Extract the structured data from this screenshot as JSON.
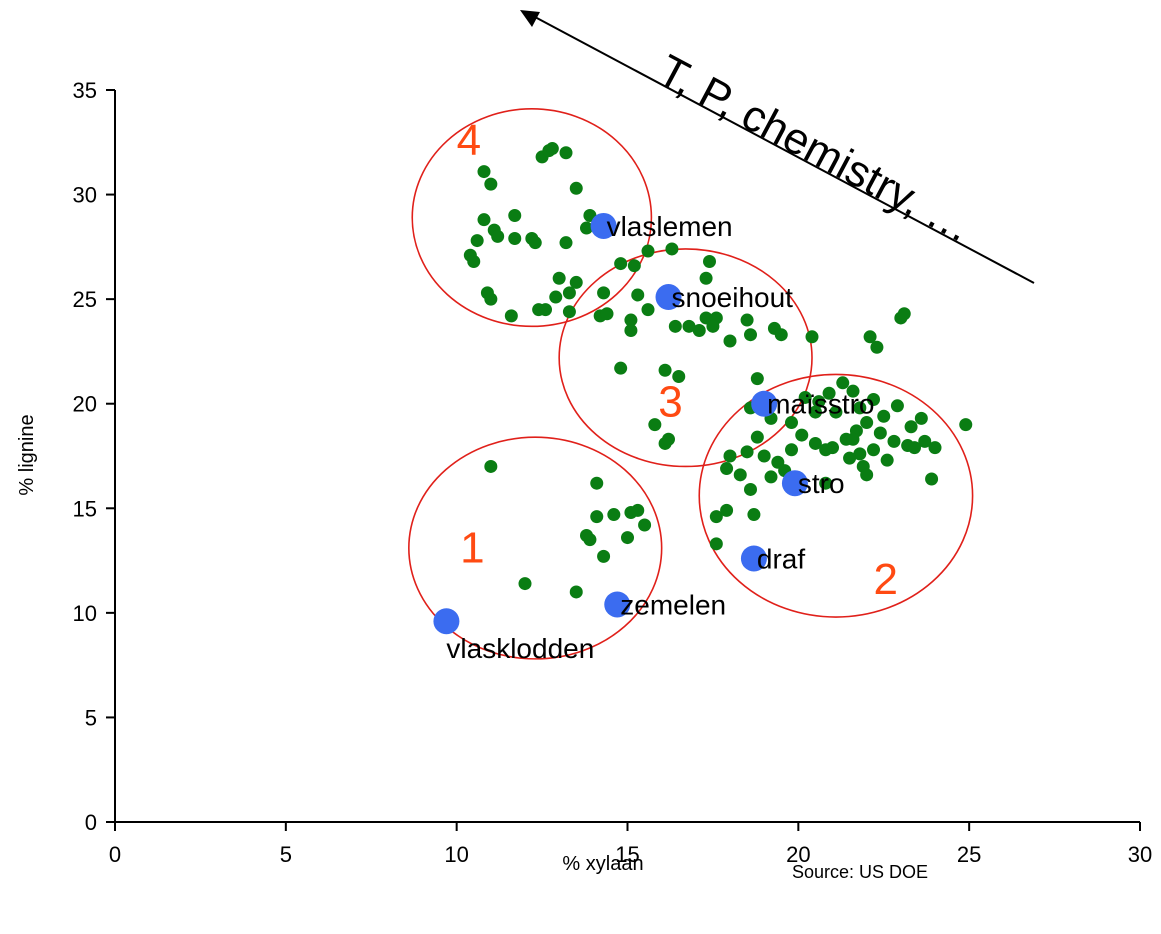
{
  "chart_data": {
    "type": "scatter",
    "xlabel": "% xylaan",
    "ylabel": "% lignine",
    "xlim": [
      0,
      30
    ],
    "ylim": [
      0,
      35
    ],
    "x_ticks": [
      0,
      5,
      10,
      15,
      20,
      25,
      30
    ],
    "y_ticks": [
      0,
      5,
      10,
      15,
      20,
      25,
      30,
      35
    ],
    "grid": false,
    "colors": {
      "background_points": "#0a7d13",
      "labeled_points": "#3b6cf0",
      "clusters": "#e0201a",
      "cluster_labels": "#ff4a12",
      "axes": "#000000"
    },
    "series": [
      {
        "points": [
          [
            11.0,
            17.0
          ],
          [
            12.0,
            11.4
          ],
          [
            13.5,
            11.0
          ],
          [
            14.1,
            16.2
          ],
          [
            13.8,
            13.7
          ],
          [
            13.9,
            13.5
          ],
          [
            14.1,
            14.6
          ],
          [
            14.6,
            14.7
          ],
          [
            15.1,
            14.8
          ],
          [
            15.3,
            14.9
          ],
          [
            15.0,
            13.6
          ],
          [
            15.5,
            14.2
          ],
          [
            14.3,
            12.7
          ],
          [
            10.8,
            31.1
          ],
          [
            11.0,
            30.5
          ],
          [
            12.5,
            31.8
          ],
          [
            12.7,
            32.1
          ],
          [
            12.8,
            32.2
          ],
          [
            13.2,
            32.0
          ],
          [
            10.8,
            28.8
          ],
          [
            11.7,
            29.0
          ],
          [
            13.5,
            30.3
          ],
          [
            13.9,
            29.0
          ],
          [
            14.2,
            28.7
          ],
          [
            10.6,
            27.8
          ],
          [
            11.1,
            28.3
          ],
          [
            11.2,
            28.0
          ],
          [
            11.7,
            27.9
          ],
          [
            12.2,
            27.9
          ],
          [
            12.3,
            27.7
          ],
          [
            10.4,
            27.1
          ],
          [
            10.5,
            26.8
          ],
          [
            13.2,
            27.7
          ],
          [
            13.8,
            28.4
          ],
          [
            10.9,
            25.3
          ],
          [
            11.0,
            25.0
          ],
          [
            11.6,
            24.2
          ],
          [
            12.4,
            24.5
          ],
          [
            12.6,
            24.5
          ],
          [
            12.9,
            25.1
          ],
          [
            13.0,
            26.0
          ],
          [
            13.3,
            25.3
          ],
          [
            13.5,
            25.8
          ],
          [
            13.3,
            24.4
          ],
          [
            14.2,
            24.2
          ],
          [
            14.3,
            25.3
          ],
          [
            14.4,
            24.3
          ],
          [
            14.8,
            26.7
          ],
          [
            15.2,
            26.6
          ],
          [
            15.6,
            27.3
          ],
          [
            16.3,
            27.4
          ],
          [
            17.4,
            26.8
          ],
          [
            17.3,
            26.0
          ],
          [
            15.3,
            25.2
          ],
          [
            15.1,
            24.0
          ],
          [
            15.1,
            23.5
          ],
          [
            15.6,
            24.5
          ],
          [
            16.4,
            23.7
          ],
          [
            16.8,
            23.7
          ],
          [
            17.1,
            23.5
          ],
          [
            17.3,
            24.1
          ],
          [
            17.6,
            24.1
          ],
          [
            17.5,
            23.7
          ],
          [
            18.0,
            23.0
          ],
          [
            18.5,
            24.0
          ],
          [
            18.6,
            23.3
          ],
          [
            19.3,
            23.6
          ],
          [
            19.5,
            23.3
          ],
          [
            20.4,
            23.2
          ],
          [
            16.1,
            21.6
          ],
          [
            16.5,
            21.3
          ],
          [
            14.8,
            21.7
          ],
          [
            15.8,
            19.0
          ],
          [
            16.1,
            18.1
          ],
          [
            16.2,
            18.3
          ],
          [
            23.0,
            24.1
          ],
          [
            23.1,
            24.3
          ],
          [
            22.1,
            23.2
          ],
          [
            22.3,
            22.7
          ],
          [
            18.8,
            21.2
          ],
          [
            18.6,
            19.8
          ],
          [
            19.2,
            19.3
          ],
          [
            19.8,
            19.1
          ],
          [
            20.2,
            20.3
          ],
          [
            20.6,
            20.1
          ],
          [
            20.9,
            20.5
          ],
          [
            21.3,
            21.0
          ],
          [
            21.6,
            20.6
          ],
          [
            21.1,
            19.6
          ],
          [
            21.8,
            19.8
          ],
          [
            22.2,
            20.2
          ],
          [
            20.5,
            19.6
          ],
          [
            20.1,
            18.5
          ],
          [
            20.5,
            18.1
          ],
          [
            21.0,
            17.9
          ],
          [
            21.4,
            18.3
          ],
          [
            21.7,
            18.7
          ],
          [
            22.0,
            19.1
          ],
          [
            22.5,
            19.4
          ],
          [
            22.9,
            19.9
          ],
          [
            23.3,
            18.9
          ],
          [
            23.6,
            19.3
          ],
          [
            23.2,
            18.0
          ],
          [
            23.7,
            18.2
          ],
          [
            24.0,
            17.9
          ],
          [
            24.9,
            19.0
          ],
          [
            23.9,
            16.4
          ],
          [
            21.8,
            17.6
          ],
          [
            21.9,
            17.0
          ],
          [
            22.0,
            16.6
          ],
          [
            22.2,
            17.8
          ],
          [
            22.6,
            17.3
          ],
          [
            22.8,
            18.2
          ],
          [
            21.6,
            18.3
          ],
          [
            22.4,
            18.6
          ],
          [
            23.4,
            17.9
          ],
          [
            21.5,
            17.4
          ],
          [
            20.8,
            17.8
          ],
          [
            18.8,
            18.4
          ],
          [
            19.0,
            17.5
          ],
          [
            19.4,
            17.2
          ],
          [
            19.8,
            17.8
          ],
          [
            19.2,
            16.5
          ],
          [
            18.3,
            16.6
          ],
          [
            18.5,
            17.7
          ],
          [
            18.0,
            17.5
          ],
          [
            17.9,
            16.9
          ],
          [
            18.6,
            15.9
          ],
          [
            19.6,
            16.8
          ],
          [
            20.8,
            16.2
          ],
          [
            17.6,
            14.6
          ],
          [
            17.9,
            14.9
          ],
          [
            18.7,
            14.7
          ],
          [
            17.6,
            13.3
          ]
        ]
      },
      {
        "points": [
          {
            "x": 14.3,
            "y": 28.5,
            "label": "vlaslemen"
          },
          {
            "x": 16.2,
            "y": 25.1,
            "label": "snoeihout"
          },
          {
            "x": 19.0,
            "y": 20.0,
            "label": "maïsstro"
          },
          {
            "x": 19.9,
            "y": 16.2,
            "label": "stro"
          },
          {
            "x": 18.7,
            "y": 12.6,
            "label": "draf"
          },
          {
            "x": 14.7,
            "y": 10.4,
            "label": "zemelen"
          },
          {
            "x": 9.7,
            "y": 9.6,
            "label": "vlasklodden"
          }
        ]
      }
    ],
    "clusters": [
      {
        "label": "4",
        "cx": 12.2,
        "cy": 28.9,
        "rx": 3.5,
        "ry": 5.2,
        "label_x": 10.0,
        "label_y": 31.9
      },
      {
        "label": "3",
        "cx": 16.7,
        "cy": 22.2,
        "rx": 3.7,
        "ry": 5.2,
        "label_x": 15.9,
        "label_y": 19.4
      },
      {
        "label": "2",
        "cx": 21.1,
        "cy": 15.6,
        "rx": 4.0,
        "ry": 5.8,
        "label_x": 22.2,
        "label_y": 10.9
      },
      {
        "label": "1",
        "cx": 12.3,
        "cy": 13.1,
        "rx": 3.7,
        "ry": 5.3,
        "label_x": 10.1,
        "label_y": 12.4
      }
    ],
    "annotations": {
      "arrow_text": "T, P, chemistry, …",
      "source_text": "Source: US DOE"
    }
  }
}
